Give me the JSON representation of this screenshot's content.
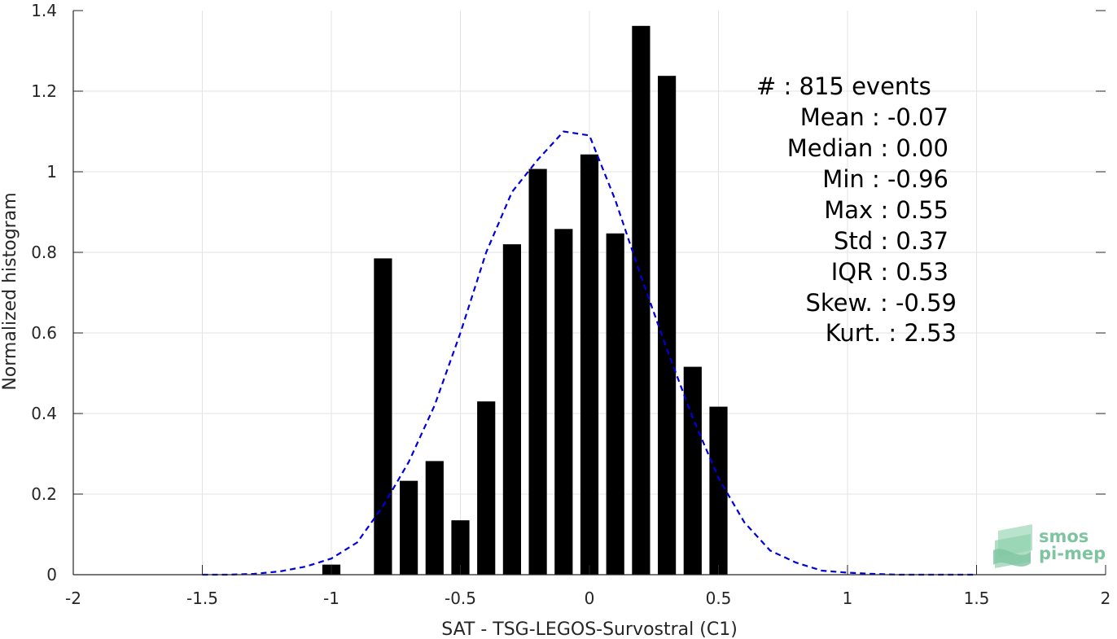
{
  "chart_data": {
    "type": "bar",
    "xlabel": "SAT - TSG-LEGOS-Survostral (C1)",
    "ylabel": "Normalized histogram",
    "xlim": [
      -2,
      2
    ],
    "ylim": [
      0,
      1.4
    ],
    "x_ticks": [
      -2,
      -1.5,
      -1,
      -0.5,
      0,
      0.5,
      1,
      1.5,
      2
    ],
    "x_tick_labels": [
      "-2",
      "-1.5",
      "-1",
      "-0.5",
      "0",
      "0.5",
      "1",
      "1.5",
      "2"
    ],
    "y_ticks": [
      0,
      0.2,
      0.4,
      0.6,
      0.8,
      1,
      1.2,
      1.4
    ],
    "y_tick_labels": [
      "0",
      "0.2",
      "0.4",
      "0.6",
      "0.8",
      "1",
      "1.2",
      "1.4"
    ],
    "grid": true,
    "bar_color": "#000000",
    "bar_width": 0.07,
    "bars": [
      {
        "x": -1.0,
        "value": 0.025
      },
      {
        "x": -0.8,
        "value": 0.785
      },
      {
        "x": -0.7,
        "value": 0.233
      },
      {
        "x": -0.6,
        "value": 0.282
      },
      {
        "x": -0.5,
        "value": 0.135
      },
      {
        "x": -0.4,
        "value": 0.43
      },
      {
        "x": -0.3,
        "value": 0.82
      },
      {
        "x": -0.2,
        "value": 1.007
      },
      {
        "x": -0.1,
        "value": 0.858
      },
      {
        "x": 0.0,
        "value": 1.043
      },
      {
        "x": 0.1,
        "value": 0.847
      },
      {
        "x": 0.2,
        "value": 1.362
      },
      {
        "x": 0.3,
        "value": 1.238
      },
      {
        "x": 0.4,
        "value": 0.516
      },
      {
        "x": 0.5,
        "value": 0.417
      }
    ],
    "fit_curve": {
      "style": "dashed",
      "color": "#0000dd",
      "x": [
        -1.5,
        -1.4,
        -1.3,
        -1.2,
        -1.1,
        -1.0,
        -0.9,
        -0.8,
        -0.7,
        -0.6,
        -0.5,
        -0.4,
        -0.3,
        -0.2,
        -0.1,
        0.0,
        0.1,
        0.2,
        0.3,
        0.4,
        0.5,
        0.6,
        0.7,
        0.8,
        0.9,
        1.0,
        1.1,
        1.2,
        1.3,
        1.4,
        1.5
      ],
      "y": [
        0.0,
        0.0,
        0.002,
        0.008,
        0.02,
        0.04,
        0.08,
        0.17,
        0.28,
        0.42,
        0.6,
        0.8,
        0.95,
        1.03,
        1.1,
        1.09,
        0.93,
        0.74,
        0.56,
        0.39,
        0.24,
        0.13,
        0.06,
        0.03,
        0.01,
        0.005,
        0.002,
        0.0,
        0.0,
        0.0,
        0.0
      ]
    },
    "stats": [
      {
        "label": "#  : 815 events"
      },
      {
        "label": "Mean : -0.07"
      },
      {
        "label": "Median : 0.00"
      },
      {
        "label": "Min : -0.96"
      },
      {
        "label": "Max : 0.55"
      },
      {
        "label": "Std : 0.37"
      },
      {
        "label": "IQR : 0.53"
      },
      {
        "label": "Skew. : -0.59"
      },
      {
        "label": "Kurt. : 2.53"
      }
    ]
  },
  "logo": {
    "line1": "smos",
    "line2": "pi-mep",
    "color": "#7fc4a0"
  }
}
